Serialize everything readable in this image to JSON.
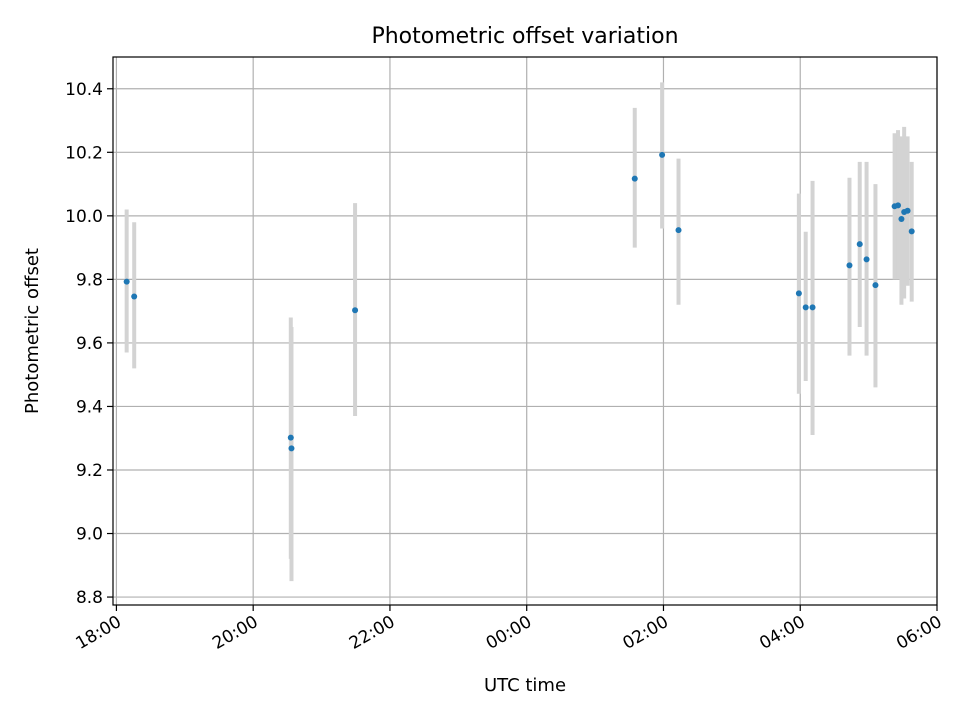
{
  "chart_data": {
    "type": "scatter",
    "title": "Photometric offset variation",
    "xlabel": "UTC time",
    "ylabel": "Photometric offset",
    "x_unit": "hours since 18:00",
    "xlim": [
      -0.05,
      12.0
    ],
    "ylim": [
      8.775,
      10.5
    ],
    "x_ticks": [
      {
        "value": 0,
        "label": "18:00"
      },
      {
        "value": 2,
        "label": "20:00"
      },
      {
        "value": 4,
        "label": "22:00"
      },
      {
        "value": 6,
        "label": "00:00"
      },
      {
        "value": 8,
        "label": "02:00"
      },
      {
        "value": 10,
        "label": "04:00"
      },
      {
        "value": 12,
        "label": "06:00"
      }
    ],
    "y_ticks": [
      {
        "value": 8.8,
        "label": "8.8"
      },
      {
        "value": 9.0,
        "label": "9.0"
      },
      {
        "value": 9.2,
        "label": "9.2"
      },
      {
        "value": 9.4,
        "label": "9.4"
      },
      {
        "value": 9.6,
        "label": "9.6"
      },
      {
        "value": 9.8,
        "label": "9.8"
      },
      {
        "value": 10.0,
        "label": "10.0"
      },
      {
        "value": 10.2,
        "label": "10.2"
      },
      {
        "value": 10.4,
        "label": "10.4"
      }
    ],
    "grid": true,
    "colors": {
      "point": "#1f77b4",
      "errorbar": "#d3d3d3"
    },
    "points": [
      {
        "x": 0.15,
        "y": 9.793,
        "lo": 9.57,
        "hi": 10.02
      },
      {
        "x": 0.26,
        "y": 9.746,
        "lo": 9.52,
        "hi": 9.98
      },
      {
        "x": 2.55,
        "y": 9.302,
        "lo": 8.92,
        "hi": 9.68
      },
      {
        "x": 2.56,
        "y": 9.268,
        "lo": 8.85,
        "hi": 9.65
      },
      {
        "x": 3.49,
        "y": 9.703,
        "lo": 9.37,
        "hi": 10.04
      },
      {
        "x": 7.58,
        "y": 10.117,
        "lo": 9.9,
        "hi": 10.34
      },
      {
        "x": 7.98,
        "y": 10.192,
        "lo": 9.96,
        "hi": 10.42
      },
      {
        "x": 8.22,
        "y": 9.955,
        "lo": 9.72,
        "hi": 10.18
      },
      {
        "x": 9.98,
        "y": 9.756,
        "lo": 9.44,
        "hi": 10.07
      },
      {
        "x": 10.08,
        "y": 9.712,
        "lo": 9.48,
        "hi": 9.95
      },
      {
        "x": 10.18,
        "y": 9.712,
        "lo": 9.31,
        "hi": 10.11
      },
      {
        "x": 10.72,
        "y": 9.844,
        "lo": 9.56,
        "hi": 10.12
      },
      {
        "x": 10.87,
        "y": 9.911,
        "lo": 9.65,
        "hi": 10.17
      },
      {
        "x": 10.97,
        "y": 9.863,
        "lo": 9.56,
        "hi": 10.17
      },
      {
        "x": 11.1,
        "y": 9.782,
        "lo": 9.46,
        "hi": 10.1
      },
      {
        "x": 11.38,
        "y": 10.03,
        "lo": 9.8,
        "hi": 10.26
      },
      {
        "x": 11.43,
        "y": 10.033,
        "lo": 9.8,
        "hi": 10.27
      },
      {
        "x": 11.48,
        "y": 9.99,
        "lo": 9.72,
        "hi": 10.25
      },
      {
        "x": 11.52,
        "y": 10.012,
        "lo": 9.74,
        "hi": 10.28
      },
      {
        "x": 11.57,
        "y": 10.016,
        "lo": 9.78,
        "hi": 10.25
      },
      {
        "x": 11.63,
        "y": 9.951,
        "lo": 9.73,
        "hi": 10.17
      }
    ]
  }
}
